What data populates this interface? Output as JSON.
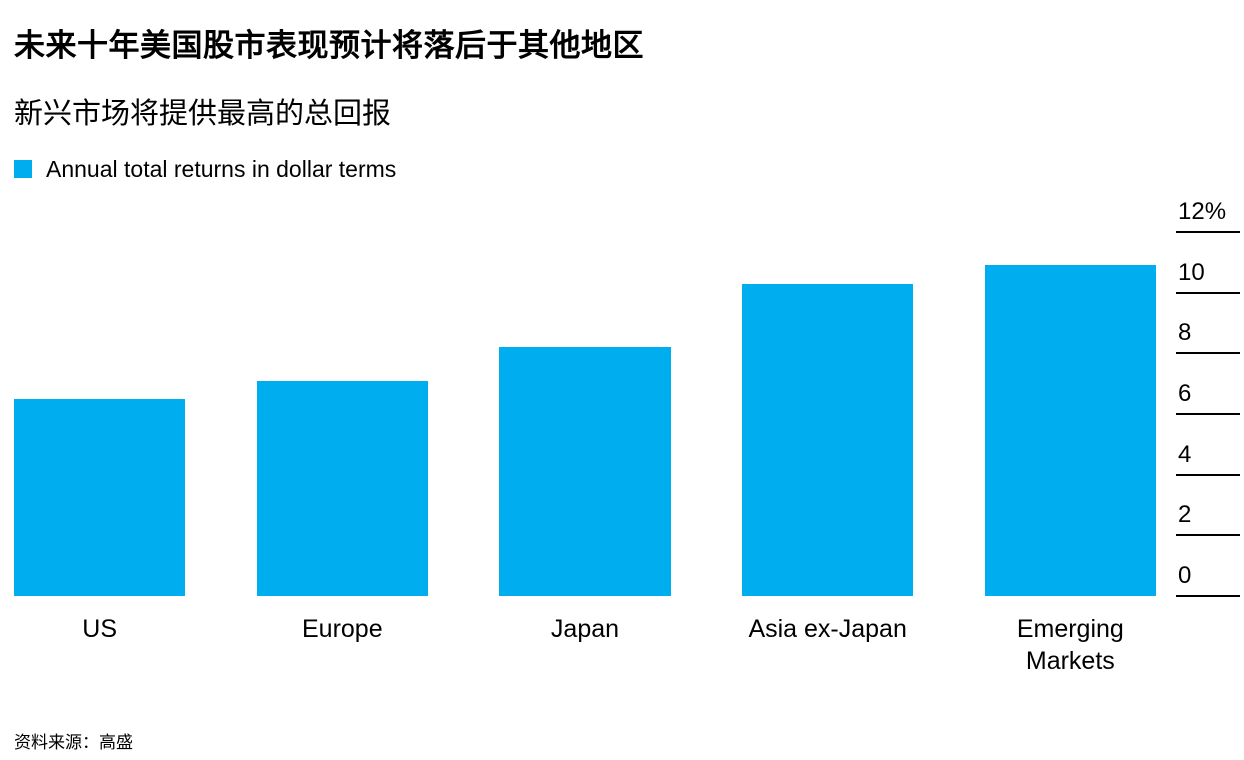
{
  "header": {
    "title": "未来十年美国股市表现预计将落后于其他地区",
    "subtitle": "新兴市场将提供最高的总回报"
  },
  "legend": {
    "label": "Annual total returns in dollar terms",
    "swatch_color": "#00aeef"
  },
  "chart_data": {
    "type": "bar",
    "title": "未来十年美国股市表现预计将落后于其他地区",
    "subtitle": "新兴市场将提供最高的总回报",
    "legend_entries": [
      "Annual total returns in dollar terms"
    ],
    "legend_position": "top-left",
    "categories": [
      "US",
      "Europe",
      "Japan",
      "Asia ex-Japan",
      "Emerging Markets"
    ],
    "values": [
      6.5,
      7.1,
      8.2,
      10.3,
      10.9
    ],
    "unit": "%",
    "xlabel": "",
    "ylabel": "",
    "ylim": [
      0,
      12
    ],
    "yticks": [
      {
        "value": 12,
        "label": "12%"
      },
      {
        "value": 10,
        "label": "10"
      },
      {
        "value": 8,
        "label": "8"
      },
      {
        "value": 6,
        "label": "6"
      },
      {
        "value": 4,
        "label": "4"
      },
      {
        "value": 2,
        "label": "2"
      },
      {
        "value": 0,
        "label": "0"
      }
    ],
    "axis_side": "right",
    "grid": false,
    "bar_color": "#00aeef"
  },
  "footer": {
    "source": "资料来源：高盛"
  }
}
